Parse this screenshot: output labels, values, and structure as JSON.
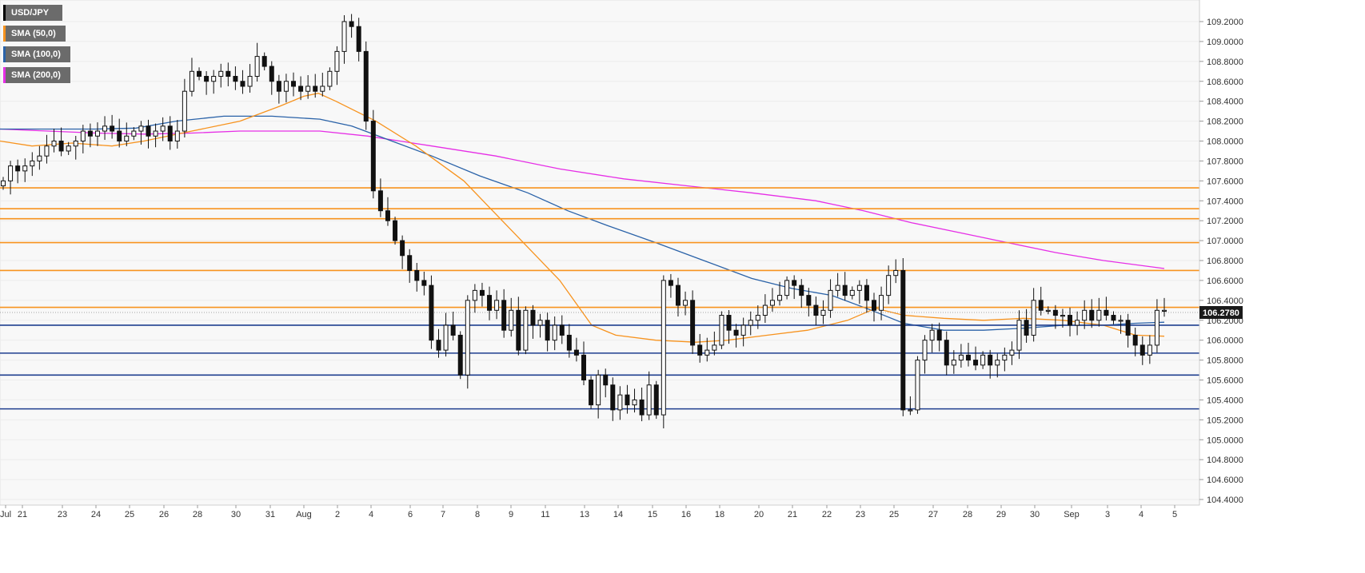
{
  "legend": {
    "instrument": "USD/JPY",
    "sma50": "SMA (50,0)",
    "sma100": "SMA (100,0)",
    "sma200": "SMA (200,0)"
  },
  "colors": {
    "instrument": "#000000",
    "sma50": "#f7931e",
    "sma100": "#2a62a8",
    "sma200": "#e62ee6",
    "resistance": "#f7931e",
    "support": "#1f3f8f",
    "price_badge": "#1a1a1a"
  },
  "chart_data": {
    "type": "candlestick",
    "instrument": "USD/JPY",
    "ylim": [
      104.4,
      109.35
    ],
    "y_ticks": [
      "109.2000",
      "109.0000",
      "108.8000",
      "108.6000",
      "108.4000",
      "108.2000",
      "108.0000",
      "107.8000",
      "107.6000",
      "107.4000",
      "107.2000",
      "107.0000",
      "106.8000",
      "106.6000",
      "106.4000",
      "106.2000",
      "106.0000",
      "105.8000",
      "105.6000",
      "105.4000",
      "105.2000",
      "105.0000",
      "104.8000",
      "104.6000",
      "104.4000"
    ],
    "x_ticks": [
      "Jul",
      "21",
      "23",
      "24",
      "25",
      "26",
      "28",
      "30",
      "31",
      "Aug",
      "2",
      "4",
      "6",
      "7",
      "8",
      "9",
      "11",
      "13",
      "14",
      "15",
      "16",
      "18",
      "20",
      "21",
      "22",
      "23",
      "25",
      "27",
      "28",
      "29",
      "30",
      "Sep",
      "3",
      "4",
      "5"
    ],
    "current_price": "106.2780",
    "current_value": 106.278,
    "resistance_levels": [
      107.53,
      107.32,
      107.22,
      106.98,
      106.7,
      106.33
    ],
    "support_levels": [
      106.15,
      105.87,
      105.65,
      105.31
    ],
    "candle_closes": [
      107.6,
      107.75,
      107.7,
      107.75,
      107.8,
      107.85,
      107.95,
      108.0,
      107.9,
      107.95,
      108.0,
      108.1,
      108.05,
      108.1,
      108.15,
      108.1,
      108.0,
      108.05,
      108.1,
      108.15,
      108.05,
      108.1,
      108.15,
      108.0,
      108.1,
      108.5,
      108.7,
      108.65,
      108.6,
      108.65,
      108.7,
      108.65,
      108.6,
      108.55,
      108.65,
      108.85,
      108.75,
      108.6,
      108.5,
      108.6,
      108.55,
      108.5,
      108.55,
      108.5,
      108.55,
      108.7,
      108.9,
      109.2,
      109.15,
      108.9,
      108.2,
      107.5,
      107.3,
      107.2,
      107.0,
      106.85,
      106.7,
      106.6,
      106.55,
      106.0,
      105.9,
      106.15,
      106.05,
      105.65,
      106.4,
      106.5,
      106.45,
      106.3,
      106.4,
      106.1,
      106.3,
      105.9,
      106.3,
      106.15,
      106.2,
      106.0,
      106.15,
      106.05,
      105.9,
      105.85,
      105.6,
      105.35,
      105.65,
      105.55,
      105.3,
      105.45,
      105.35,
      105.4,
      105.25,
      105.55,
      105.25,
      106.6,
      106.55,
      106.35,
      106.4,
      105.95,
      105.85,
      105.9,
      105.95,
      106.25,
      106.1,
      106.05,
      106.15,
      106.2,
      106.25,
      106.35,
      106.4,
      106.45,
      106.6,
      106.55,
      106.45,
      106.35,
      106.25,
      106.3,
      106.5,
      106.55,
      106.45,
      106.5,
      106.55,
      106.4,
      106.3,
      106.45,
      106.65,
      106.7,
      105.3,
      105.3,
      105.8,
      106.0,
      106.1,
      106.0,
      105.75,
      105.8,
      105.85,
      105.8,
      105.75,
      105.85,
      105.75,
      105.8,
      105.85,
      105.9,
      106.2,
      106.05,
      106.4,
      106.3,
      106.3,
      106.25,
      106.25,
      106.15,
      106.2,
      106.3,
      106.2,
      106.3,
      106.25,
      106.2,
      106.2,
      106.05,
      105.95,
      105.85,
      105.95,
      106.3,
      106.3
    ],
    "sma50": [
      [
        0,
        108.0
      ],
      [
        40,
        107.95
      ],
      [
        90,
        107.98
      ],
      [
        140,
        107.95
      ],
      [
        180,
        108.0
      ],
      [
        240,
        108.1
      ],
      [
        300,
        108.2
      ],
      [
        350,
        108.35
      ],
      [
        380,
        108.45
      ],
      [
        398,
        108.48
      ],
      [
        420,
        108.4
      ],
      [
        470,
        108.2
      ],
      [
        520,
        107.95
      ],
      [
        580,
        107.6
      ],
      [
        640,
        107.1
      ],
      [
        700,
        106.6
      ],
      [
        740,
        106.15
      ],
      [
        770,
        106.05
      ],
      [
        820,
        106.0
      ],
      [
        870,
        105.98
      ],
      [
        910,
        106.0
      ],
      [
        960,
        106.05
      ],
      [
        1010,
        106.1
      ],
      [
        1060,
        106.2
      ],
      [
        1095,
        106.32
      ],
      [
        1130,
        106.25
      ],
      [
        1180,
        106.22
      ],
      [
        1230,
        106.2
      ],
      [
        1280,
        106.22
      ],
      [
        1330,
        106.2
      ],
      [
        1380,
        106.15
      ],
      [
        1420,
        106.05
      ],
      [
        1456,
        106.04
      ]
    ],
    "sma100": [
      [
        0,
        108.12
      ],
      [
        60,
        108.12
      ],
      [
        120,
        108.12
      ],
      [
        170,
        108.13
      ],
      [
        220,
        108.2
      ],
      [
        280,
        108.25
      ],
      [
        340,
        108.25
      ],
      [
        400,
        108.22
      ],
      [
        440,
        108.15
      ],
      [
        490,
        108.0
      ],
      [
        540,
        107.85
      ],
      [
        600,
        107.65
      ],
      [
        660,
        107.48
      ],
      [
        710,
        107.3
      ],
      [
        760,
        107.15
      ],
      [
        820,
        106.98
      ],
      [
        880,
        106.8
      ],
      [
        940,
        106.62
      ],
      [
        990,
        106.52
      ],
      [
        1040,
        106.45
      ],
      [
        1090,
        106.3
      ],
      [
        1130,
        106.17
      ],
      [
        1180,
        106.1
      ],
      [
        1230,
        106.1
      ],
      [
        1280,
        106.12
      ],
      [
        1330,
        106.15
      ],
      [
        1380,
        106.15
      ],
      [
        1420,
        106.17
      ],
      [
        1456,
        106.18
      ]
    ],
    "sma200": [
      [
        0,
        108.12
      ],
      [
        60,
        108.1
      ],
      [
        120,
        108.08
      ],
      [
        180,
        108.07
      ],
      [
        240,
        108.08
      ],
      [
        300,
        108.1
      ],
      [
        360,
        108.1
      ],
      [
        400,
        108.1
      ],
      [
        460,
        108.05
      ],
      [
        540,
        107.95
      ],
      [
        620,
        107.85
      ],
      [
        700,
        107.72
      ],
      [
        780,
        107.62
      ],
      [
        860,
        107.55
      ],
      [
        940,
        107.48
      ],
      [
        1020,
        107.4
      ],
      [
        1080,
        107.3
      ],
      [
        1140,
        107.18
      ],
      [
        1200,
        107.08
      ],
      [
        1260,
        106.98
      ],
      [
        1320,
        106.88
      ],
      [
        1380,
        106.8
      ],
      [
        1456,
        106.72
      ]
    ]
  }
}
